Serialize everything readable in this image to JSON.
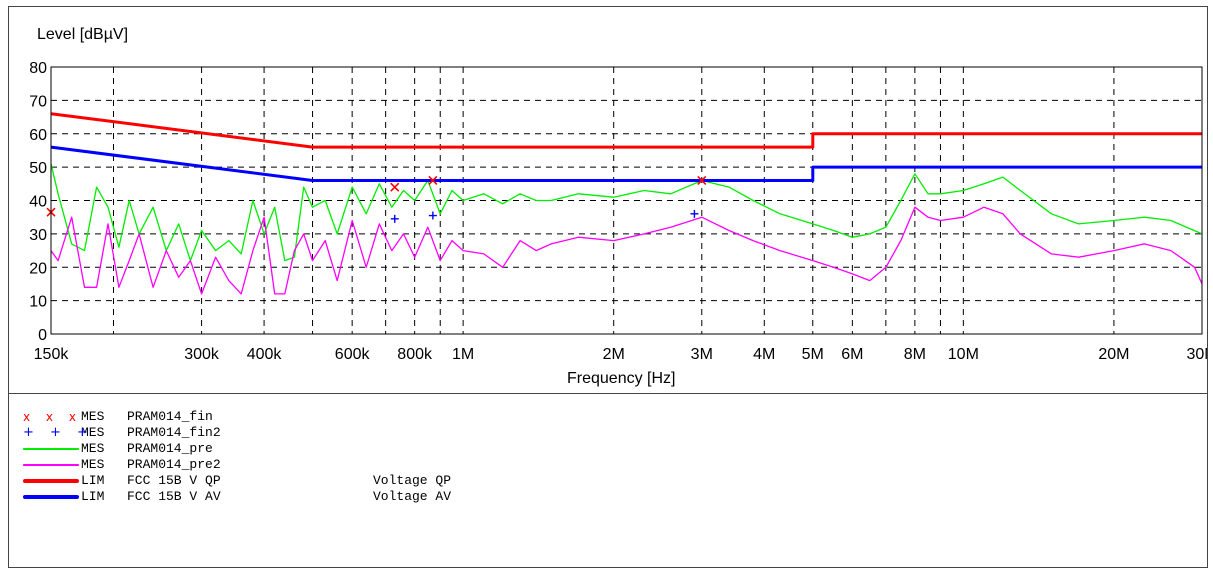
{
  "chart_data": {
    "type": "line",
    "ylabel": "Level [dBµV]",
    "xlabel": "Frequency [Hz]",
    "x_scale": "log",
    "xlim": [
      150000,
      30000000
    ],
    "ylim": [
      0,
      80
    ],
    "y_ticks": [
      0,
      10,
      20,
      30,
      40,
      50,
      60,
      70,
      80
    ],
    "x_ticks": [
      {
        "value": 150000,
        "label": "150k"
      },
      {
        "value": 300000,
        "label": "300k"
      },
      {
        "value": 400000,
        "label": "400k"
      },
      {
        "value": 600000,
        "label": "600k"
      },
      {
        "value": 800000,
        "label": "800k"
      },
      {
        "value": 1000000,
        "label": "1M"
      },
      {
        "value": 2000000,
        "label": "2M"
      },
      {
        "value": 3000000,
        "label": "3M"
      },
      {
        "value": 4000000,
        "label": "4M"
      },
      {
        "value": 5000000,
        "label": "5M"
      },
      {
        "value": 6000000,
        "label": "6M"
      },
      {
        "value": 8000000,
        "label": "8M"
      },
      {
        "value": 10000000,
        "label": "10M"
      },
      {
        "value": 20000000,
        "label": "20M"
      },
      {
        "value": 30000000,
        "label": "30M"
      }
    ],
    "grid": true,
    "grid_x": [
      150000,
      200000,
      300000,
      400000,
      500000,
      600000,
      700000,
      800000,
      900000,
      1000000,
      2000000,
      3000000,
      4000000,
      5000000,
      6000000,
      7000000,
      8000000,
      9000000,
      10000000,
      20000000,
      30000000
    ],
    "series": [
      {
        "name": "PRAM014_pre",
        "color": "#00ee00",
        "x": [
          150000,
          155000,
          165000,
          175000,
          185000,
          195000,
          205000,
          215000,
          225000,
          240000,
          255000,
          270000,
          285000,
          300000,
          320000,
          340000,
          360000,
          380000,
          400000,
          420000,
          440000,
          460000,
          480000,
          500000,
          530000,
          560000,
          600000,
          640000,
          680000,
          720000,
          760000,
          800000,
          850000,
          900000,
          950000,
          1000000,
          1100000,
          1200000,
          1300000,
          1400000,
          1500000,
          1700000,
          2000000,
          2300000,
          2600000,
          3000000,
          3400000,
          3800000,
          4300000,
          5000000,
          5500000,
          6000000,
          6500000,
          7000000,
          7500000,
          8000000,
          8500000,
          9000000,
          10000000,
          11000000,
          12000000,
          13000000,
          15000000,
          17000000,
          20000000,
          23000000,
          26000000,
          30000000
        ],
        "y": [
          51,
          42,
          27,
          25,
          44,
          38,
          26,
          40,
          30,
          38,
          25,
          33,
          22,
          31,
          25,
          28,
          24,
          40,
          30,
          38,
          22,
          23,
          44,
          38,
          40,
          30,
          44,
          36,
          45,
          38,
          43,
          40,
          46,
          36,
          43,
          40,
          42,
          39,
          42,
          40,
          40,
          42,
          41,
          43,
          42,
          46,
          44,
          40,
          36,
          33,
          31,
          29,
          30,
          32,
          40,
          48,
          42,
          42,
          43,
          45,
          47,
          43,
          36,
          33,
          34,
          35,
          34,
          30
        ]
      },
      {
        "name": "PRAM014_pre2",
        "color": "#ff00ff",
        "x": [
          150000,
          155000,
          165000,
          175000,
          185000,
          195000,
          205000,
          215000,
          225000,
          240000,
          255000,
          270000,
          285000,
          300000,
          320000,
          340000,
          360000,
          380000,
          400000,
          420000,
          440000,
          460000,
          480000,
          500000,
          530000,
          560000,
          600000,
          640000,
          680000,
          720000,
          760000,
          800000,
          850000,
          900000,
          950000,
          1000000,
          1100000,
          1200000,
          1300000,
          1400000,
          1500000,
          1700000,
          2000000,
          2300000,
          2600000,
          3000000,
          3400000,
          3800000,
          4300000,
          5000000,
          5500000,
          6000000,
          6500000,
          7000000,
          7500000,
          8000000,
          8500000,
          9000000,
          10000000,
          11000000,
          12000000,
          13000000,
          15000000,
          17000000,
          20000000,
          23000000,
          26000000,
          29000000,
          30000000
        ],
        "y": [
          25,
          22,
          35,
          14,
          14,
          33,
          14,
          22,
          30,
          14,
          25,
          17,
          22,
          12,
          23,
          16,
          12,
          25,
          35,
          12,
          12,
          25,
          30,
          22,
          28,
          16,
          34,
          20,
          33,
          25,
          30,
          23,
          32,
          22,
          28,
          25,
          24,
          20,
          28,
          25,
          27,
          29,
          28,
          30,
          32,
          35,
          31,
          28,
          25,
          22,
          20,
          18,
          16,
          20,
          28,
          38,
          35,
          34,
          35,
          38,
          36,
          30,
          24,
          23,
          25,
          27,
          25,
          20,
          15
        ]
      },
      {
        "name": "FCC 15B V QP",
        "color": "#ff0000",
        "x": [
          150000,
          500000,
          5000000,
          5000001,
          30000000
        ],
        "y": [
          66,
          56,
          56,
          60,
          60
        ]
      },
      {
        "name": "FCC 15B V AV",
        "color": "#0000ff",
        "x": [
          150000,
          500000,
          5000000,
          5000001,
          30000000
        ],
        "y": [
          56,
          46,
          46,
          50,
          50
        ]
      }
    ],
    "markers": [
      {
        "name": "PRAM014_fin",
        "symbol": "x",
        "color": "#ff0000",
        "points": [
          [
            150000,
            36.5
          ],
          [
            730000,
            44
          ],
          [
            870000,
            46
          ],
          [
            3000000,
            46
          ]
        ]
      },
      {
        "name": "PRAM014_fin2",
        "symbol": "+",
        "color": "#0000ff",
        "points": [
          [
            730000,
            34.5
          ],
          [
            870000,
            35.5
          ],
          [
            2900000,
            36
          ]
        ]
      }
    ]
  },
  "legend": [
    {
      "kind": "MES",
      "name": "PRAM014_fin",
      "desc": "",
      "style": "x",
      "color": "#ff0000"
    },
    {
      "kind": "MES",
      "name": "PRAM014_fin2",
      "desc": "",
      "style": "+",
      "color": "#0000ff"
    },
    {
      "kind": "MES",
      "name": "PRAM014_pre",
      "desc": "",
      "style": "thin",
      "color": "#00ee00"
    },
    {
      "kind": "MES",
      "name": "PRAM014_pre2",
      "desc": "",
      "style": "thin",
      "color": "#ff00ff"
    },
    {
      "kind": "LIM",
      "name": "FCC 15B V QP",
      "desc": "Voltage QP",
      "style": "thick",
      "color": "#ff0000"
    },
    {
      "kind": "LIM",
      "name": "FCC 15B V AV",
      "desc": "Voltage AV",
      "style": "thick",
      "color": "#0000ff"
    }
  ]
}
